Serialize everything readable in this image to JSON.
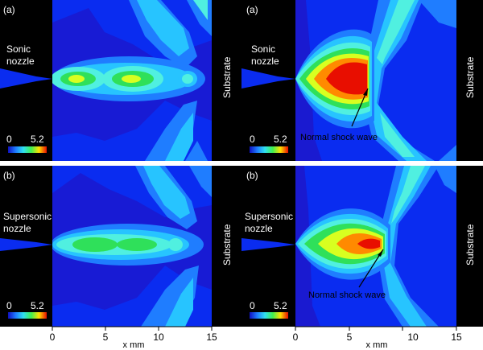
{
  "panels": [
    {
      "id": "tl",
      "tag": "(a)",
      "nozzle_line1": "Sonic",
      "nozzle_line2": "nozzle",
      "substrate": "Substrate",
      "cbar_min": "0",
      "cbar_max": "5.2"
    },
    {
      "id": "tr",
      "tag": "(a)",
      "nozzle_line1": "Sonic",
      "nozzle_line2": "nozzle",
      "substrate": "Substrate",
      "cbar_min": "0",
      "cbar_max": "5.2",
      "annotation": "Normal shock wave"
    },
    {
      "id": "bl",
      "tag": "(b)",
      "nozzle_line1": "Supersonic",
      "nozzle_line2": "nozzle",
      "substrate": "Substrate",
      "cbar_min": "0",
      "cbar_max": "5.2"
    },
    {
      "id": "br",
      "tag": "(b)",
      "nozzle_line1": "Supersonic",
      "nozzle_line2": "nozzle",
      "substrate": "Substrate",
      "cbar_min": "0",
      "cbar_max": "5.2",
      "annotation": "Normal shock wave"
    }
  ],
  "x_axis": {
    "left": {
      "ticks": [
        "0",
        "5",
        "10",
        "15"
      ],
      "label": "x mm"
    },
    "right": {
      "ticks": [
        "0",
        "5",
        "10",
        "15"
      ],
      "label": "x mm"
    }
  },
  "colors": {
    "background_field": "#0a2cf0",
    "dark_blue": "#1a1ad0",
    "light_blue": "#1f7dff",
    "cyan": "#27c4ff",
    "aqua": "#50f0e0",
    "green": "#2fe05a",
    "yellow": "#d8ff20",
    "orange": "#ff8a00",
    "red": "#e80e00",
    "black": "#000000"
  }
}
